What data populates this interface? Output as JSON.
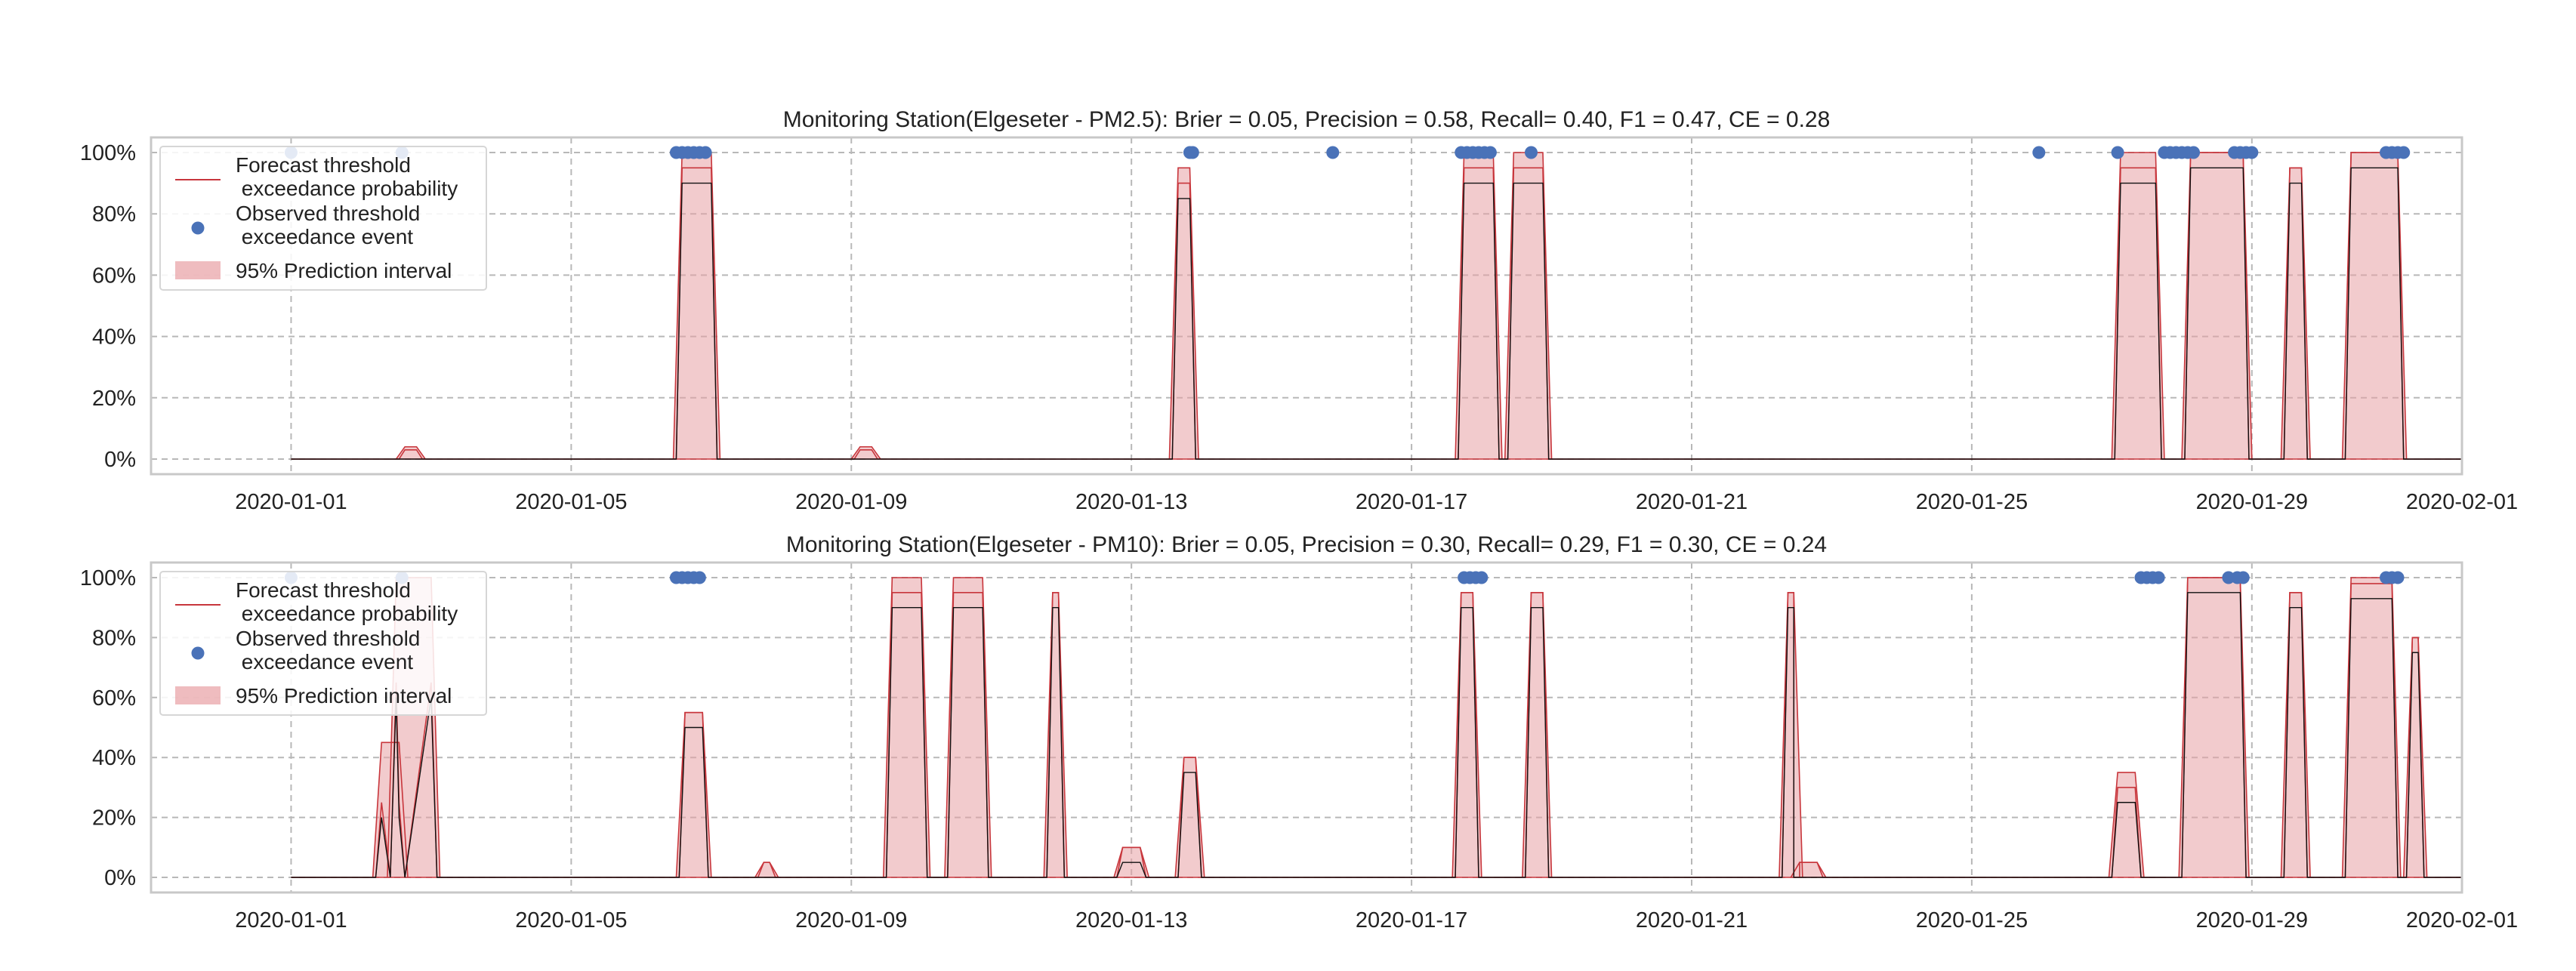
{
  "chart_data": [
    {
      "type": "line",
      "title": "Monitoring Station(Elgeseter - PM2.5): Brier = 0.05, Precision = 0.58, Recall= 0.40, F1 = 0.47, CE = 0.28",
      "xlabel": "",
      "ylabel": "",
      "x_range": [
        "2019-12-30",
        "2020-02-01"
      ],
      "ylim": [
        0,
        1
      ],
      "x_ticks": [
        "2020-01-01",
        "2020-01-05",
        "2020-01-09",
        "2020-01-13",
        "2020-01-17",
        "2020-01-21",
        "2020-01-25",
        "2020-01-29",
        "2020-02-01"
      ],
      "y_ticks": [
        "0%",
        "20%",
        "40%",
        "60%",
        "80%",
        "100%"
      ],
      "y_tick_values": [
        0,
        0.2,
        0.4,
        0.6,
        0.8,
        1.0
      ],
      "grid": true,
      "legend_position": "top-left",
      "legend": [
        {
          "label": "Forecast threshold\n exceedance probability",
          "kind": "line",
          "color": "#c8363c"
        },
        {
          "label": "Observed threshold\n exceedance event",
          "kind": "dot",
          "color": "#4a72b8"
        },
        {
          "label": "95% Prediction interval",
          "kind": "patch",
          "color": "#e8a0a4"
        }
      ],
      "series": [
        {
          "name": "Forecast threshold\n exceedance probability",
          "role": "forecast",
          "spikes": [
            [
              "2020-01-02 17:00",
              0.03,
              0.04,
              2
            ],
            [
              "2020-01-06 19:00",
              0.95,
              1.0,
              5
            ],
            [
              "2020-01-09 05:00",
              0.03,
              0.04,
              2
            ],
            [
              "2020-01-13 18:00",
              0.9,
              0.95,
              2
            ],
            [
              "2020-01-17 23:00",
              0.95,
              1.0,
              5
            ],
            [
              "2020-01-18 16:00",
              0.95,
              1.0,
              5
            ],
            [
              "2020-01-27 09:00",
              0.95,
              1.0,
              6
            ],
            [
              "2020-01-28 12:00",
              1.0,
              1.0,
              9
            ],
            [
              "2020-01-29 15:00",
              0.95,
              0.95,
              2
            ],
            [
              "2020-01-30 18:00",
              1.0,
              1.0,
              8
            ]
          ],
          "y": [
            0.0,
            0.0,
            0.0,
            0.02,
            0.0,
            0.0,
            0.0,
            0.0,
            0.0,
            0.0,
            0.0,
            0.0,
            0.0,
            0.0,
            0.0,
            0.0,
            0.0,
            0.0,
            0.0,
            0.0,
            0.0,
            0.0,
            0.0,
            0.0,
            0.0,
            0.0,
            0.0,
            0.0,
            0.0,
            0.0,
            0.0,
            0.0,
            0.0
          ]
        },
        {
          "name": "Observed threshold\n exceedance event",
          "role": "observed",
          "x": [
            "2020-01-01",
            "2020-01-02 14:00",
            "2020-01-06 12:00",
            "2020-01-06 14:00",
            "2020-01-06 16:00",
            "2020-01-06 18:00",
            "2020-01-06 20:00",
            "2020-01-06 22:00",
            "2020-01-13 20:00",
            "2020-01-13 21:00",
            "2020-01-15 21:00",
            "2020-01-17 17:00",
            "2020-01-17 19:00",
            "2020-01-17 21:00",
            "2020-01-17 23:00",
            "2020-01-18 01:00",
            "2020-01-18 03:00",
            "2020-01-18 17:00",
            "2020-01-25 23:00",
            "2020-01-27 02:00",
            "2020-01-27 18:00",
            "2020-01-27 20:00",
            "2020-01-27 22:00",
            "2020-01-28 00:00",
            "2020-01-28 02:00",
            "2020-01-28 04:00",
            "2020-01-28 18:00",
            "2020-01-28 20:00",
            "2020-01-28 22:00",
            "2020-01-29 00:00",
            "2020-01-30 22:00",
            "2020-01-31 00:00",
            "2020-01-31 02:00",
            "2020-01-31 04:00"
          ],
          "y": [
            1,
            1,
            1,
            1,
            1,
            1,
            1,
            1,
            1,
            1,
            1,
            1,
            1,
            1,
            1,
            1,
            1,
            1,
            1,
            1,
            1,
            1,
            1,
            1,
            1,
            1,
            1,
            1,
            1,
            1,
            1,
            1,
            1,
            1
          ]
        }
      ]
    },
    {
      "type": "line",
      "title": "Monitoring Station(Elgeseter - PM10): Brier = 0.05, Precision = 0.30, Recall= 0.29, F1 = 0.30, CE = 0.24",
      "xlabel": "",
      "ylabel": "",
      "x_range": [
        "2019-12-30",
        "2020-02-01"
      ],
      "ylim": [
        0,
        1
      ],
      "x_ticks": [
        "2020-01-01",
        "2020-01-05",
        "2020-01-09",
        "2020-01-13",
        "2020-01-17",
        "2020-01-21",
        "2020-01-25",
        "2020-01-29",
        "2020-02-01"
      ],
      "y_ticks": [
        "0%",
        "20%",
        "40%",
        "60%",
        "80%",
        "100%"
      ],
      "y_tick_values": [
        0,
        0.2,
        0.4,
        0.6,
        0.8,
        1.0
      ],
      "grid": true,
      "legend_position": "top-left",
      "legend": [
        {
          "label": "Forecast threshold\n exceedance probability",
          "kind": "line",
          "color": "#c8363c"
        },
        {
          "label": "Observed threshold\n exceedance event",
          "kind": "dot",
          "color": "#4a72b8"
        },
        {
          "label": "95% Prediction interval",
          "kind": "patch",
          "color": "#e8a0a4"
        }
      ],
      "series": [
        {
          "name": "Forecast threshold\n exceedance probability",
          "role": "forecast",
          "spikes": [
            [
              "2020-01-02 10:00",
              0.25,
              0.45,
              3
            ],
            [
              "2020-01-02 18:00",
              0.65,
              1.0,
              6
            ],
            [
              "2020-01-06 18:00",
              0.55,
              0.55,
              3
            ],
            [
              "2020-01-07 19:00",
              0.05,
              0.05,
              1
            ],
            [
              "2020-01-09 19:00",
              0.95,
              1.0,
              5
            ],
            [
              "2020-01-10 16:00",
              0.95,
              1.0,
              5
            ],
            [
              "2020-01-11 22:00",
              0.95,
              0.95,
              1
            ],
            [
              "2020-01-13 00:00",
              0.1,
              0.1,
              3
            ],
            [
              "2020-01-13 20:00",
              0.4,
              0.4,
              2
            ],
            [
              "2020-01-17 19:00",
              0.95,
              0.95,
              2
            ],
            [
              "2020-01-18 19:00",
              0.95,
              0.95,
              2
            ],
            [
              "2020-01-22 10:00",
              0.95,
              0.95,
              1
            ],
            [
              "2020-01-22 16:00",
              0.05,
              0.05,
              3
            ],
            [
              "2020-01-27 05:00",
              0.3,
              0.35,
              3
            ],
            [
              "2020-01-28 11:00",
              1.0,
              1.0,
              9
            ],
            [
              "2020-01-29 15:00",
              0.95,
              0.95,
              2
            ],
            [
              "2020-01-30 17:00",
              0.98,
              1.0,
              7
            ],
            [
              "2020-01-31 08:00",
              0.8,
              0.8,
              1
            ]
          ],
          "y": [
            0.0,
            0.0,
            0.0,
            0.0,
            0.0,
            0.0,
            0.0,
            0.0,
            0.0,
            0.0,
            0.0,
            0.0,
            0.0,
            0.0,
            0.0,
            0.0,
            0.0,
            0.0,
            0.0,
            0.0,
            0.0,
            0.0,
            0.0,
            0.0,
            0.0,
            0.0,
            0.0,
            0.0,
            0.0,
            0.0,
            0.0,
            0.0,
            0.0
          ]
        },
        {
          "name": "Observed threshold\n exceedance event",
          "role": "observed",
          "x": [
            "2020-01-01",
            "2020-01-02 14:00",
            "2020-01-06 12:00",
            "2020-01-06 14:00",
            "2020-01-06 16:00",
            "2020-01-06 18:00",
            "2020-01-06 20:00",
            "2020-01-17 18:00",
            "2020-01-17 20:00",
            "2020-01-17 22:00",
            "2020-01-18 00:00",
            "2020-01-27 10:00",
            "2020-01-27 12:00",
            "2020-01-27 14:00",
            "2020-01-27 16:00",
            "2020-01-28 16:00",
            "2020-01-28 19:00",
            "2020-01-28 21:00",
            "2020-01-30 22:00",
            "2020-01-31 00:00",
            "2020-01-31 02:00"
          ],
          "y": [
            1,
            1,
            1,
            1,
            1,
            1,
            1,
            1,
            1,
            1,
            1,
            1,
            1,
            1,
            1,
            1,
            1,
            1,
            1,
            1,
            1
          ]
        }
      ]
    }
  ]
}
